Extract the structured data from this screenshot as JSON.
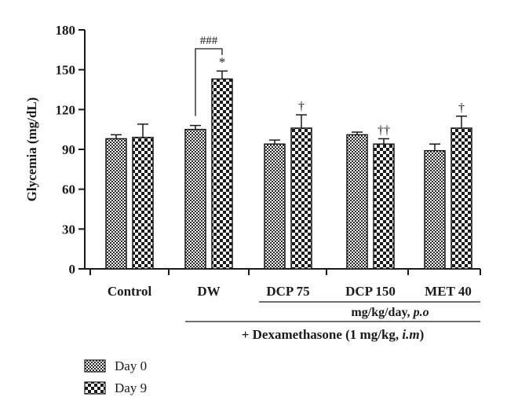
{
  "chart_data": {
    "type": "bar",
    "ylabel": "Glycemia (mg/dL)",
    "ylim": [
      0,
      180
    ],
    "yticks": [
      0,
      30,
      60,
      90,
      120,
      150,
      180
    ],
    "categories": [
      "Control",
      "DW",
      "DCP 75",
      "DCP 150",
      "MET 40"
    ],
    "series": [
      {
        "name": "Day 0",
        "pattern": "fine-check",
        "values": [
          98,
          105,
          94,
          101,
          89
        ],
        "errors": [
          3,
          3,
          3,
          2,
          5
        ]
      },
      {
        "name": "Day 9",
        "pattern": "coarse-check",
        "values": [
          99,
          143,
          106,
          94,
          106
        ],
        "errors": [
          10,
          6,
          10,
          4,
          9
        ]
      }
    ],
    "annotations": {
      "significance_labels": [
        "###",
        "*",
        "†",
        "††",
        "†"
      ],
      "dose_label_prefix": "mg/kg/day, ",
      "dose_label_italic": "p.o",
      "treatment_label_prefix": "+ Dexamethasone (1 mg/kg, ",
      "treatment_label_italic": "i.m",
      "treatment_label_suffix": ")"
    },
    "legend_position": "bottom-left",
    "grid": false
  },
  "colors": {
    "axis": "#1a1a1a",
    "bar_dark": "#222222",
    "bar_light": "#ffffff"
  }
}
